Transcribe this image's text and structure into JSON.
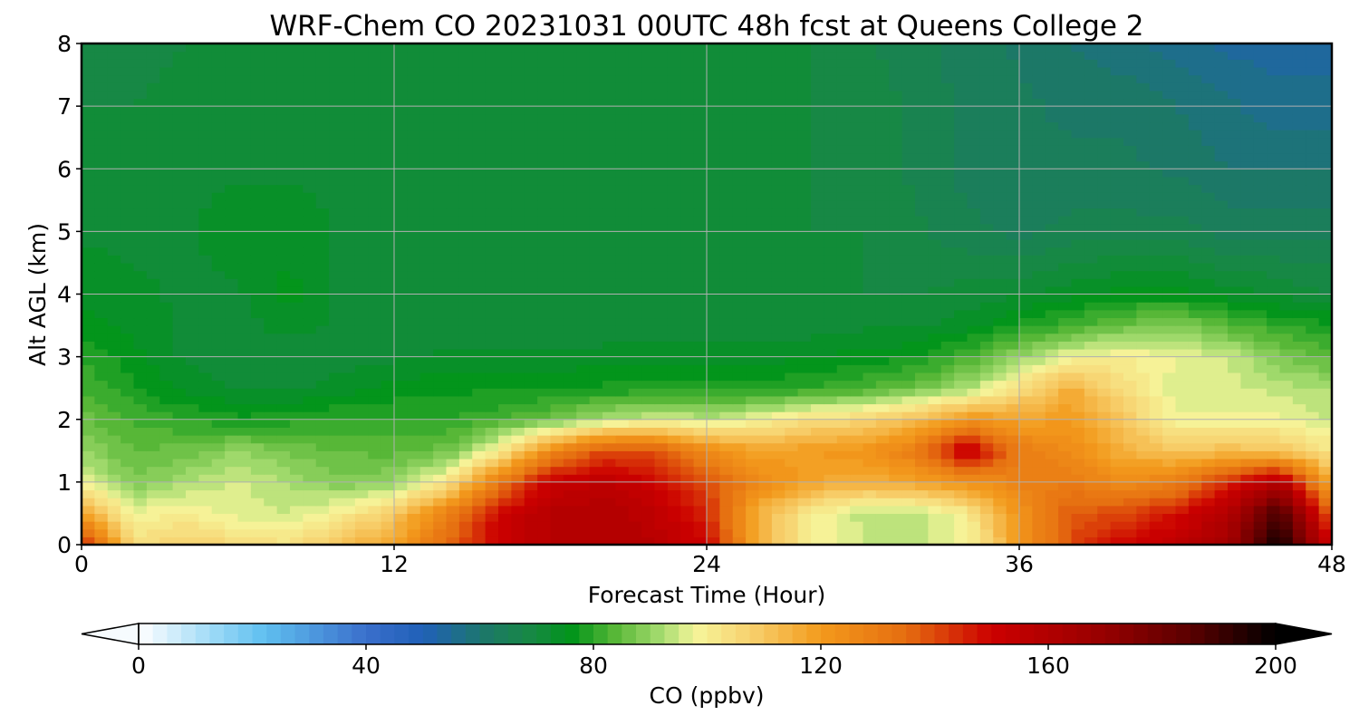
{
  "chart_data": {
    "type": "heatmap",
    "title": "WRF-Chem CO  20231031 00UTC 48h fcst at Queens College 2",
    "xlabel": "Forecast Time (Hour)",
    "ylabel": "Alt AGL (km)",
    "xlim": [
      0,
      48
    ],
    "ylim": [
      0,
      8
    ],
    "xticks": [
      0,
      12,
      24,
      36,
      48
    ],
    "yticks": [
      0,
      1,
      2,
      3,
      4,
      5,
      6,
      7,
      8
    ],
    "grid": true,
    "colorbar": {
      "label": "CO  (ppbv)",
      "min": 0,
      "max": 200,
      "step": 2.5,
      "ticks": [
        0,
        40,
        80,
        120,
        160,
        200
      ],
      "extend": "both",
      "stops": [
        {
          "v": 0,
          "c": "#ffffff"
        },
        {
          "v": 15,
          "c": "#8fd4f5"
        },
        {
          "v": 22,
          "c": "#60c0f0"
        },
        {
          "v": 40,
          "c": "#3a6fcb"
        },
        {
          "v": 50,
          "c": "#2060b8"
        },
        {
          "v": 62,
          "c": "#1c7a62"
        },
        {
          "v": 70,
          "c": "#168a40"
        },
        {
          "v": 76,
          "c": "#00941a"
        },
        {
          "v": 84,
          "c": "#5ab838"
        },
        {
          "v": 92,
          "c": "#a6dc70"
        },
        {
          "v": 98,
          "c": "#f6f59a"
        },
        {
          "v": 108,
          "c": "#f7cf6c"
        },
        {
          "v": 120,
          "c": "#f39a1c"
        },
        {
          "v": 135,
          "c": "#e56d10"
        },
        {
          "v": 150,
          "c": "#cc0000"
        },
        {
          "v": 170,
          "c": "#960000"
        },
        {
          "v": 185,
          "c": "#5a0000"
        },
        {
          "v": 200,
          "c": "#000000"
        }
      ]
    },
    "x": [
      0,
      2,
      4,
      6,
      8,
      10,
      12,
      14,
      16,
      18,
      20,
      22,
      24,
      26,
      28,
      30,
      32,
      34,
      36,
      38,
      40,
      42,
      44,
      46,
      48
    ],
    "y": [
      0,
      0.5,
      1,
      1.5,
      2,
      2.5,
      3,
      3.5,
      4,
      5,
      6,
      7,
      8
    ],
    "z": [
      [
        148,
        103,
        108,
        105,
        103,
        112,
        118,
        135,
        150,
        158,
        160,
        158,
        150,
        115,
        100,
        95,
        94,
        98,
        120,
        140,
        150,
        155,
        165,
        200,
        150
      ],
      [
        118,
        98,
        100,
        96,
        95,
        100,
        110,
        128,
        150,
        158,
        160,
        155,
        145,
        115,
        100,
        94,
        93,
        100,
        122,
        138,
        140,
        148,
        160,
        190,
        135
      ],
      [
        98,
        88,
        92,
        96,
        92,
        88,
        90,
        102,
        130,
        152,
        155,
        150,
        140,
        125,
        118,
        115,
        118,
        122,
        128,
        130,
        125,
        128,
        145,
        160,
        115
      ],
      [
        90,
        85,
        86,
        90,
        87,
        85,
        84,
        86,
        100,
        125,
        140,
        140,
        125,
        118,
        120,
        122,
        130,
        155,
        130,
        125,
        115,
        110,
        112,
        110,
        102
      ],
      [
        86,
        82,
        80,
        78,
        79,
        80,
        80,
        80,
        82,
        86,
        92,
        96,
        94,
        98,
        104,
        106,
        112,
        122,
        118,
        120,
        110,
        98,
        98,
        98,
        95
      ],
      [
        82,
        78,
        74,
        72,
        72,
        74,
        76,
        77,
        77,
        77,
        78,
        78,
        78,
        78,
        80,
        82,
        86,
        92,
        104,
        116,
        104,
        96,
        96,
        94,
        92
      ],
      [
        80,
        76,
        72,
        70,
        70,
        71,
        72,
        73,
        73,
        73,
        74,
        74,
        74,
        74,
        75,
        76,
        77,
        82,
        90,
        98,
        100,
        98,
        95,
        88,
        84
      ],
      [
        76,
        74,
        72,
        71,
        74,
        72,
        71,
        70,
        70,
        70,
        70,
        70,
        70,
        70,
        71,
        72,
        72,
        74,
        78,
        82,
        86,
        88,
        84,
        80,
        78
      ],
      [
        74,
        73,
        72,
        72,
        76,
        72,
        71,
        70,
        70,
        70,
        70,
        70,
        70,
        70,
        70,
        70,
        70,
        71,
        72,
        74,
        76,
        76,
        74,
        72,
        70
      ],
      [
        72,
        72,
        72,
        74,
        74,
        72,
        71,
        70,
        70,
        70,
        70,
        70,
        70,
        70,
        70,
        70,
        68,
        66,
        64,
        66,
        66,
        66,
        64,
        64,
        64
      ],
      [
        70,
        70,
        72,
        72,
        72,
        72,
        71,
        70,
        70,
        70,
        70,
        70,
        70,
        70,
        70,
        69,
        67,
        64,
        63,
        63,
        63,
        62,
        60,
        60,
        60
      ],
      [
        70,
        70,
        72,
        72,
        72,
        72,
        71,
        70,
        70,
        71,
        72,
        71,
        70,
        70,
        70,
        69,
        67,
        64,
        63,
        62,
        62,
        60,
        58,
        56,
        56
      ],
      [
        70,
        68,
        70,
        71,
        71,
        70,
        70,
        70,
        70,
        70,
        70,
        70,
        70,
        70,
        70,
        68,
        66,
        64,
        62,
        60,
        58,
        56,
        54,
        54,
        54
      ]
    ]
  }
}
